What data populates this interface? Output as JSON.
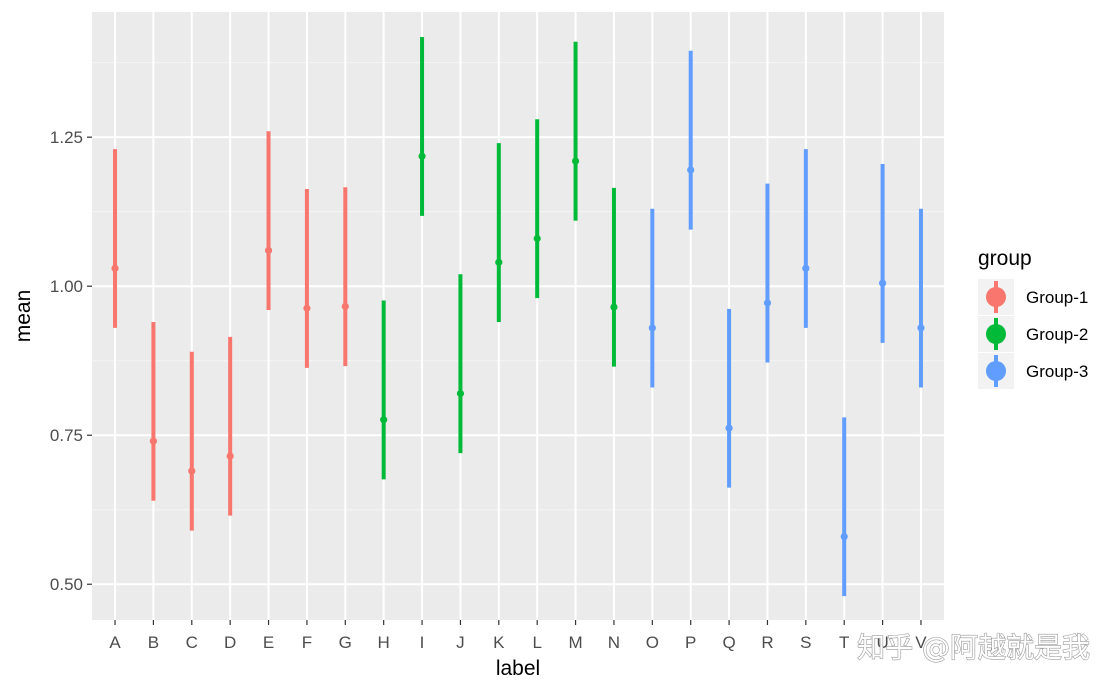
{
  "chart_data": {
    "type": "errorbar",
    "xlabel": "label",
    "ylabel": "mean",
    "ylim": [
      0.44,
      1.46
    ],
    "yticks": [
      0.5,
      0.75,
      1.0,
      1.25
    ],
    "ytick_labels": [
      "0.50",
      "0.75",
      "1.00",
      "1.25"
    ],
    "grid": true,
    "background": "#ebebeb",
    "legend": {
      "title": "group",
      "position": "right",
      "entries": [
        {
          "name": "Group-1",
          "color": "#F8766D"
        },
        {
          "name": "Group-2",
          "color": "#00BA38"
        },
        {
          "name": "Group-3",
          "color": "#619CFF"
        }
      ]
    },
    "points": [
      {
        "label": "A",
        "group": "Group-1",
        "mean": 1.03,
        "lower": 0.93,
        "upper": 1.23
      },
      {
        "label": "B",
        "group": "Group-1",
        "mean": 0.74,
        "lower": 0.64,
        "upper": 0.94
      },
      {
        "label": "C",
        "group": "Group-1",
        "mean": 0.69,
        "lower": 0.59,
        "upper": 0.89
      },
      {
        "label": "D",
        "group": "Group-1",
        "mean": 0.715,
        "lower": 0.615,
        "upper": 0.915
      },
      {
        "label": "E",
        "group": "Group-1",
        "mean": 1.06,
        "lower": 0.96,
        "upper": 1.26
      },
      {
        "label": "F",
        "group": "Group-1",
        "mean": 0.963,
        "lower": 0.863,
        "upper": 1.163
      },
      {
        "label": "G",
        "group": "Group-1",
        "mean": 0.966,
        "lower": 0.866,
        "upper": 1.166
      },
      {
        "label": "H",
        "group": "Group-2",
        "mean": 0.776,
        "lower": 0.676,
        "upper": 0.976
      },
      {
        "label": "I",
        "group": "Group-2",
        "mean": 1.218,
        "lower": 1.118,
        "upper": 1.418
      },
      {
        "label": "J",
        "group": "Group-2",
        "mean": 0.82,
        "lower": 0.72,
        "upper": 1.02
      },
      {
        "label": "K",
        "group": "Group-2",
        "mean": 1.04,
        "lower": 0.94,
        "upper": 1.24
      },
      {
        "label": "L",
        "group": "Group-2",
        "mean": 1.08,
        "lower": 0.98,
        "upper": 1.28
      },
      {
        "label": "M",
        "group": "Group-2",
        "mean": 1.21,
        "lower": 1.11,
        "upper": 1.41
      },
      {
        "label": "N",
        "group": "Group-2",
        "mean": 0.965,
        "lower": 0.865,
        "upper": 1.165
      },
      {
        "label": "O",
        "group": "Group-3",
        "mean": 0.93,
        "lower": 0.83,
        "upper": 1.13
      },
      {
        "label": "P",
        "group": "Group-3",
        "mean": 1.195,
        "lower": 1.095,
        "upper": 1.395
      },
      {
        "label": "Q",
        "group": "Group-3",
        "mean": 0.762,
        "lower": 0.662,
        "upper": 0.962
      },
      {
        "label": "R",
        "group": "Group-3",
        "mean": 0.972,
        "lower": 0.872,
        "upper": 1.172
      },
      {
        "label": "S",
        "group": "Group-3",
        "mean": 1.03,
        "lower": 0.93,
        "upper": 1.23
      },
      {
        "label": "T",
        "group": "Group-3",
        "mean": 0.58,
        "lower": 0.48,
        "upper": 0.78
      },
      {
        "label": "U",
        "group": "Group-3",
        "mean": 1.005,
        "lower": 0.905,
        "upper": 1.205
      },
      {
        "label": "V",
        "group": "Group-3",
        "mean": 0.93,
        "lower": 0.83,
        "upper": 1.13
      }
    ]
  },
  "watermark": "知乎 @阿越就是我"
}
